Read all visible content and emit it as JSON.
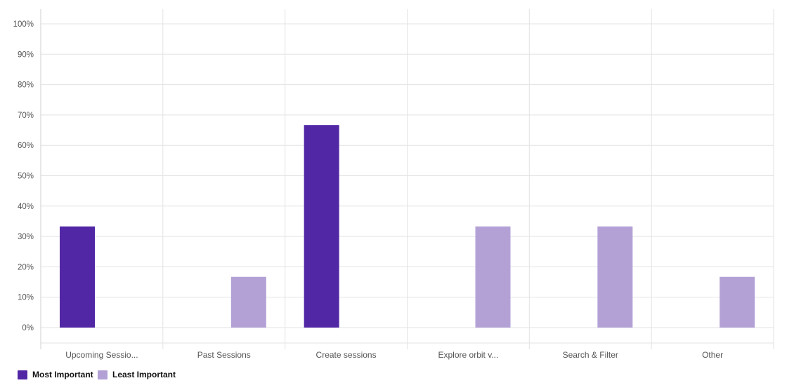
{
  "chart_data": {
    "type": "bar",
    "categories": [
      "Upcoming Sessio...",
      "Past Sessions",
      "Create sessions",
      "Explore orbit v...",
      "Search & Filter",
      "Other"
    ],
    "series": [
      {
        "name": "Most Important",
        "values": [
          33.3,
          0,
          66.7,
          0,
          0,
          0
        ],
        "color": "#5227a5"
      },
      {
        "name": "Least Important",
        "values": [
          0,
          16.7,
          0,
          33.3,
          33.3,
          16.7
        ],
        "color": "#b3a1d6"
      }
    ],
    "yticks": [
      "0%",
      "10%",
      "20%",
      "30%",
      "40%",
      "50%",
      "60%",
      "70%",
      "80%",
      "90%",
      "100%"
    ],
    "ylim": [
      0,
      100
    ],
    "grid": true,
    "legend_position": "bottom-left",
    "title": "",
    "xlabel": "",
    "ylabel": ""
  }
}
